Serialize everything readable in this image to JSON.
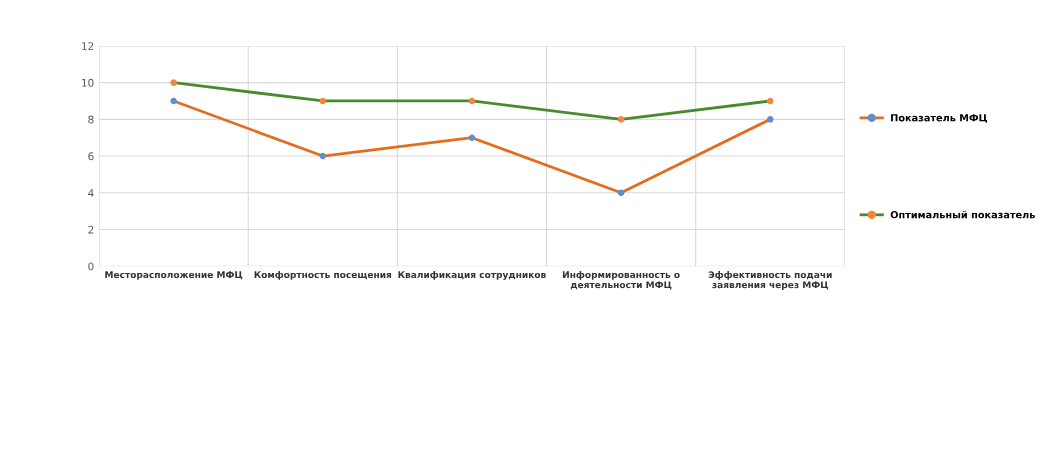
{
  "chart_data": {
    "type": "line",
    "categories": [
      "Месторасположение МФЦ",
      "Комфортность посещения",
      "Квалификация сотрудников",
      "Информированность о\nдеятельности МФЦ",
      "Эффективность подачи\nзаявления через МФЦ"
    ],
    "series": [
      {
        "name": "Показатель МФЦ",
        "color": "#e46c1e",
        "colors": [
          "#5b8fd1",
          "#5b8fd1",
          "#5b8fd1",
          "#5b8fd1",
          "#5b8fd1"
        ],
        "values": [
          9,
          6,
          7,
          4,
          8
        ]
      },
      {
        "name": "Оптимальный показатель",
        "color": "#4a8a2f",
        "colors": [
          "#f0883a",
          "#f0883a",
          "#f0883a",
          "#f0883a",
          "#f0883a"
        ],
        "values": [
          10,
          9,
          9,
          8,
          9
        ]
      }
    ],
    "ylim": [
      0,
      12
    ],
    "yticks": [
      0,
      2,
      4,
      6,
      8,
      10,
      12
    ],
    "grid": true,
    "legend": "right",
    "marker": "circle",
    "line_style": "solid"
  }
}
